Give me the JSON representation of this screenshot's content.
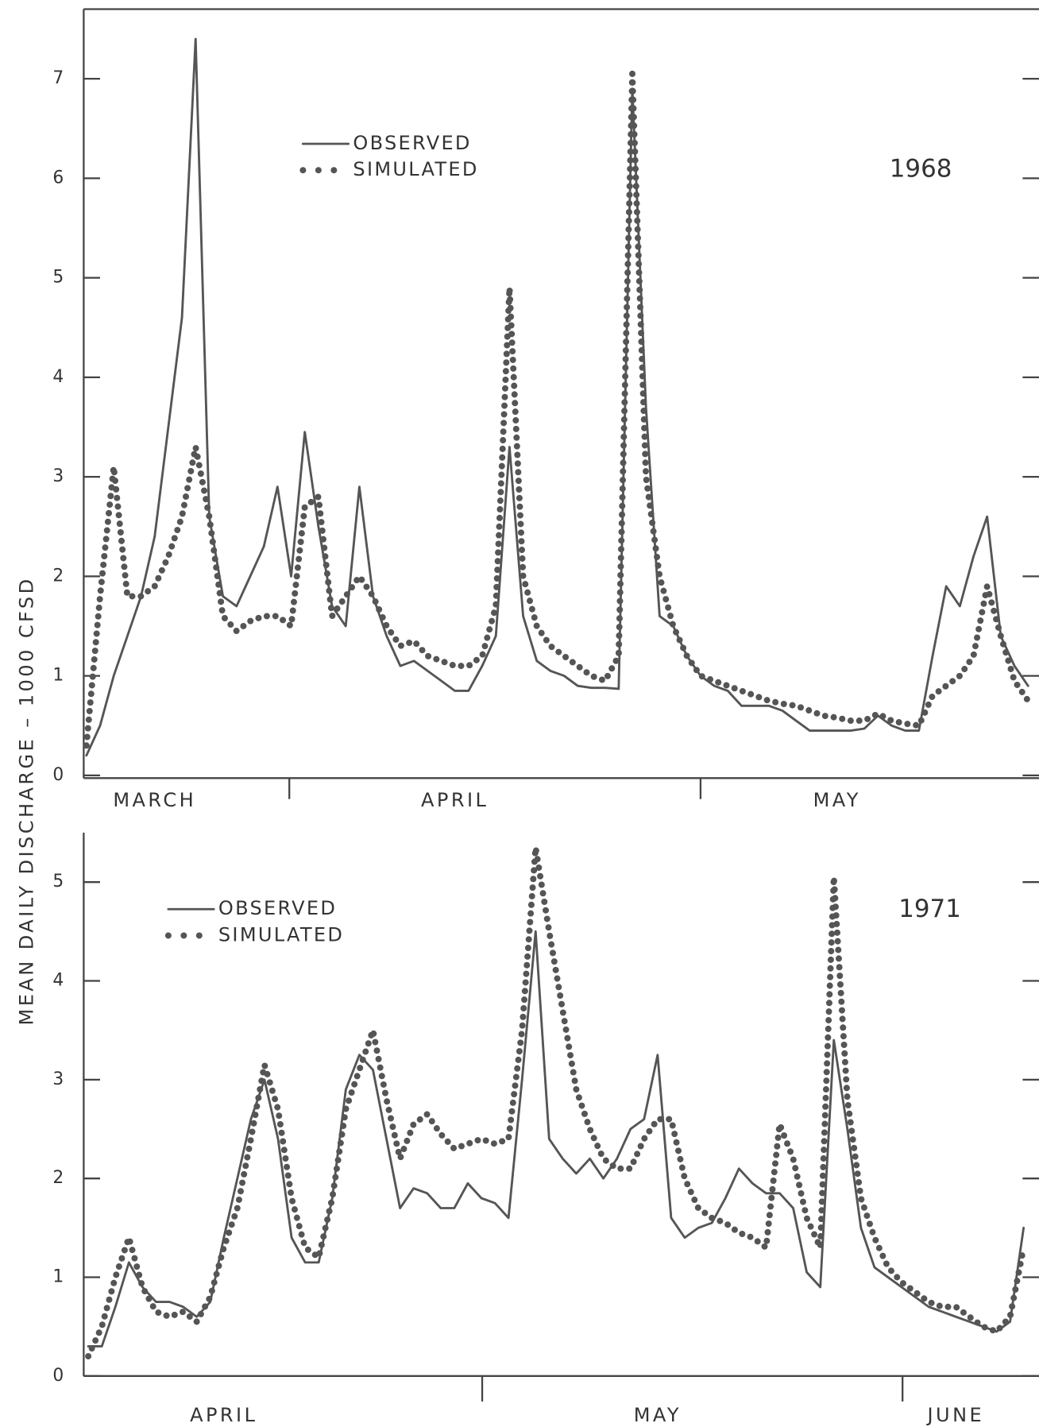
{
  "chart_data": [
    {
      "type": "line",
      "title": "1968",
      "ylabel": "MEAN  DAILY  DISCHARGE  –  1000 CFSD",
      "categories": [
        null,
        null,
        null,
        null,
        null,
        "MARCH",
        null,
        null,
        null,
        null,
        null,
        null,
        null,
        null,
        null,
        null,
        null,
        null,
        null,
        null,
        null,
        null,
        null,
        null,
        null,
        null,
        null,
        "APRIL",
        null,
        null,
        null,
        null,
        null,
        null,
        null,
        null,
        null,
        null,
        null,
        null,
        null,
        null,
        null,
        null,
        null,
        null,
        null,
        null,
        null,
        null,
        null,
        null,
        null,
        null,
        null,
        "MAY",
        null,
        null,
        null,
        null,
        null,
        null,
        null,
        null,
        null,
        null,
        null,
        null,
        null,
        null
      ],
      "series": [
        {
          "name": "OBSERVED",
          "color": "#555555",
          "style": "solid",
          "values": [
            0.2,
            0.5,
            1.0,
            1.4,
            1.8,
            2.4,
            3.5,
            4.6,
            7.4,
            2.6,
            1.8,
            1.7,
            2.0,
            2.3,
            2.9,
            2.0,
            3.45,
            2.5,
            1.7,
            1.5,
            2.9,
            1.8,
            1.4,
            1.1,
            1.15,
            1.05,
            0.95,
            0.85,
            0.85,
            1.1,
            1.4,
            3.3,
            1.6,
            1.15,
            1.05,
            1.0,
            0.9,
            0.88,
            0.88,
            0.87,
            6.9,
            3.7,
            1.6,
            1.5,
            1.2,
            1.0,
            0.9,
            0.85,
            0.7,
            0.7,
            0.7,
            0.65,
            0.55,
            0.45,
            0.45,
            0.45,
            0.45,
            0.47,
            0.6,
            0.5,
            0.45,
            0.45,
            1.2,
            1.9,
            1.7,
            2.2,
            2.6,
            1.4,
            1.1,
            0.9
          ]
        },
        {
          "name": "SIMULATED",
          "color": "#555555",
          "style": "dotted",
          "values": [
            0.3,
            1.8,
            3.1,
            1.8,
            1.8,
            1.9,
            2.2,
            2.6,
            3.3,
            2.6,
            1.6,
            1.45,
            1.55,
            1.6,
            1.6,
            1.5,
            2.7,
            2.8,
            1.6,
            1.8,
            2.0,
            1.8,
            1.5,
            1.3,
            1.35,
            1.2,
            1.15,
            1.1,
            1.1,
            1.2,
            1.7,
            4.9,
            2.0,
            1.5,
            1.3,
            1.2,
            1.1,
            1.0,
            0.95,
            1.2,
            7.05,
            3.0,
            2.0,
            1.5,
            1.2,
            1.0,
            0.95,
            0.9,
            0.85,
            0.8,
            0.75,
            0.72,
            0.7,
            0.65,
            0.6,
            0.58,
            0.55,
            0.55,
            0.62,
            0.55,
            0.52,
            0.5,
            0.8,
            0.9,
            1.0,
            1.2,
            1.9,
            1.4,
            0.95,
            0.75
          ]
        }
      ],
      "ylim": [
        0,
        7.7
      ],
      "yticks": [
        0,
        1,
        2,
        3,
        4,
        5,
        6,
        7
      ]
    },
    {
      "type": "line",
      "title": "1971",
      "categories": [
        null,
        null,
        null,
        null,
        null,
        null,
        null,
        null,
        null,
        null,
        "APRIL",
        null,
        null,
        null,
        null,
        null,
        null,
        null,
        null,
        null,
        null,
        null,
        null,
        null,
        null,
        null,
        null,
        null,
        null,
        null,
        null,
        null,
        null,
        null,
        null,
        null,
        null,
        null,
        null,
        null,
        null,
        null,
        "MAY",
        null,
        null,
        null,
        null,
        null,
        null,
        null,
        null,
        null,
        null,
        null,
        null,
        null,
        null,
        null,
        null,
        null,
        null,
        null,
        null,
        null,
        "JUNE",
        null,
        null,
        null,
        null,
        null
      ],
      "series": [
        {
          "name": "OBSERVED",
          "color": "#555555",
          "style": "solid",
          "values": [
            0.3,
            0.3,
            0.7,
            1.15,
            0.9,
            0.75,
            0.75,
            0.7,
            0.6,
            0.75,
            1.4,
            2.0,
            2.6,
            3.0,
            2.4,
            1.4,
            1.15,
            1.15,
            1.8,
            2.9,
            3.25,
            3.1,
            2.4,
            1.7,
            1.9,
            1.85,
            1.7,
            1.7,
            1.95,
            1.8,
            1.75,
            1.6,
            3.0,
            4.5,
            2.4,
            2.2,
            2.05,
            2.2,
            2.0,
            2.2,
            2.5,
            2.6,
            3.25,
            1.6,
            1.4,
            1.5,
            1.55,
            1.8,
            2.1,
            1.95,
            1.85,
            1.85,
            1.7,
            1.05,
            0.9,
            3.4,
            2.5,
            1.5,
            1.1,
            1.0,
            0.9,
            0.8,
            0.7,
            0.65,
            0.6,
            0.55,
            0.5,
            0.45,
            0.55,
            1.5
          ]
        },
        {
          "name": "SIMULATED",
          "color": "#555555",
          "style": "dotted",
          "values": [
            0.2,
            0.5,
            1.0,
            1.4,
            0.9,
            0.65,
            0.6,
            0.65,
            0.55,
            0.8,
            1.3,
            1.7,
            2.4,
            3.15,
            2.7,
            1.8,
            1.3,
            1.2,
            1.8,
            2.7,
            3.1,
            3.5,
            2.8,
            2.2,
            2.55,
            2.65,
            2.45,
            2.3,
            2.35,
            2.4,
            2.35,
            2.4,
            3.5,
            5.35,
            4.5,
            3.7,
            2.9,
            2.5,
            2.2,
            2.1,
            2.1,
            2.4,
            2.6,
            2.6,
            2.0,
            1.7,
            1.6,
            1.55,
            1.45,
            1.4,
            1.3,
            2.55,
            2.2,
            1.6,
            1.3,
            5.05,
            2.8,
            1.8,
            1.4,
            1.1,
            0.95,
            0.85,
            0.75,
            0.7,
            0.7,
            0.6,
            0.5,
            0.45,
            0.6,
            1.3
          ]
        }
      ],
      "ylim": [
        0,
        5.5
      ],
      "yticks": [
        0,
        1,
        2,
        3,
        4,
        5
      ]
    }
  ]
}
